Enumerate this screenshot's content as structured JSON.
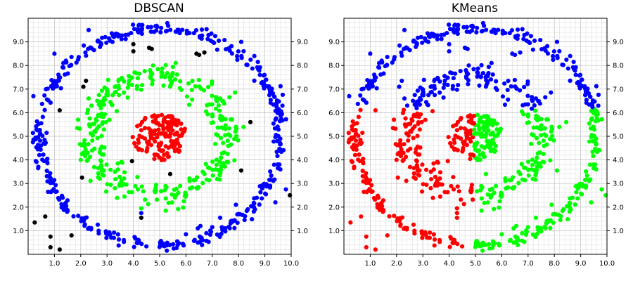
{
  "chart_data": [
    {
      "type": "scatter",
      "title": "DBSCAN",
      "xlim": [
        0,
        10
      ],
      "ylim": [
        0,
        10
      ],
      "x_ticks": [
        "1.0",
        "2.0",
        "3.0",
        "4.0",
        "5.0",
        "6.0",
        "7.0",
        "8.0",
        "9.0",
        "10.0"
      ],
      "y_ticks": [
        "1.0",
        "2.0",
        "3.0",
        "4.0",
        "5.0",
        "6.0",
        "7.0",
        "8.0",
        "9.0"
      ],
      "grid": true,
      "y_tick_labels_both_sides": true,
      "series": [
        {
          "color": "#0000ff",
          "generator": {
            "kind": "ring",
            "cx": 5.0,
            "cy": 5.0,
            "r": 4.6,
            "jitter": 0.13,
            "n": 430,
            "seed": 11
          }
        },
        {
          "color": "#00ff00",
          "generator": {
            "kind": "ring",
            "cx": 5.0,
            "cy": 5.0,
            "r": 2.55,
            "jitter": 0.27,
            "n": 330,
            "seed": 22
          }
        },
        {
          "color": "#ff0000",
          "generator": {
            "kind": "disk",
            "cx": 5.0,
            "cy": 4.95,
            "r": 1.0,
            "n": 140,
            "seed": 33
          }
        },
        {
          "color": "#000000",
          "points": [
            [
              0.25,
              1.35
            ],
            [
              0.65,
              1.6
            ],
            [
              0.85,
              0.75
            ],
            [
              0.85,
              0.3
            ],
            [
              1.2,
              0.2
            ],
            [
              1.65,
              0.8
            ],
            [
              2.05,
              3.25
            ],
            [
              2.1,
              7.1
            ],
            [
              2.2,
              7.35
            ],
            [
              1.2,
              6.1
            ],
            [
              3.95,
              3.95
            ],
            [
              4.0,
              8.9
            ],
            [
              4.3,
              1.55
            ],
            [
              4.6,
              8.75
            ],
            [
              4.7,
              8.7
            ],
            [
              5.4,
              3.4
            ],
            [
              6.4,
              8.5
            ],
            [
              6.5,
              8.45
            ],
            [
              6.7,
              8.55
            ],
            [
              8.1,
              3.55
            ],
            [
              8.45,
              5.6
            ],
            [
              9.95,
              2.5
            ],
            [
              4.0,
              8.6
            ]
          ]
        },
        {
          "color": "#0000ff",
          "points": [
            [
              0.2,
              6.7
            ],
            [
              2.3,
              9.5
            ],
            [
              4.3,
              1.75
            ],
            [
              6.0,
              0.85
            ],
            [
              6.45,
              1.1
            ],
            [
              6.55,
              1.2
            ],
            [
              7.3,
              1.55
            ],
            [
              7.9,
              2.1
            ],
            [
              8.1,
              9.0
            ],
            [
              9.4,
              2.2
            ],
            [
              9.8,
              2.75
            ],
            [
              8.6,
              8.4
            ],
            [
              1.0,
              8.5
            ],
            [
              4.2,
              9.4
            ],
            [
              7.0,
              1.15
            ]
          ]
        },
        {
          "color": "#00ff00",
          "points": [
            [
              4.3,
              1.95
            ],
            [
              3.3,
              2.8
            ],
            [
              1.9,
              5.7
            ],
            [
              2.3,
              6.6
            ],
            [
              7.6,
              3.9
            ],
            [
              7.9,
              5.4
            ],
            [
              2.0,
              4.0
            ],
            [
              7.3,
              6.6
            ]
          ]
        }
      ]
    },
    {
      "type": "scatter",
      "title": "KMeans",
      "xlim": [
        0,
        10
      ],
      "ylim": [
        0,
        10
      ],
      "x_ticks": [
        "1.0",
        "2.0",
        "3.0",
        "4.0",
        "5.0",
        "6.0",
        "7.0",
        "8.0",
        "9.0",
        "10.0"
      ],
      "y_ticks": [
        "1.0",
        "2.0",
        "3.0",
        "4.0",
        "5.0",
        "6.0",
        "7.0",
        "8.0",
        "9.0"
      ],
      "grid": true,
      "y_tick_labels_both_sides": true,
      "partition": {
        "colors": {
          "red": "#ff0000",
          "green": "#00ff00",
          "blue": "#0000ff"
        },
        "rule": "blue if y > 6.15; otherwise red if x < 4.95, else green"
      },
      "series": [
        {
          "generator": {
            "kind": "ring",
            "cx": 5.0,
            "cy": 5.0,
            "r": 4.6,
            "jitter": 0.13,
            "n": 430,
            "seed": 11
          }
        },
        {
          "generator": {
            "kind": "ring",
            "cx": 5.0,
            "cy": 5.0,
            "r": 2.55,
            "jitter": 0.27,
            "n": 330,
            "seed": 22
          }
        },
        {
          "generator": {
            "kind": "disk",
            "cx": 5.0,
            "cy": 4.95,
            "r": 1.0,
            "n": 140,
            "seed": 33
          }
        },
        {
          "points": [
            [
              0.25,
              1.35
            ],
            [
              0.65,
              1.6
            ],
            [
              0.85,
              0.75
            ],
            [
              0.85,
              0.3
            ],
            [
              1.2,
              0.2
            ],
            [
              1.65,
              0.8
            ],
            [
              2.05,
              3.25
            ],
            [
              2.1,
              7.1
            ],
            [
              2.2,
              7.35
            ],
            [
              1.2,
              6.1
            ],
            [
              3.95,
              3.95
            ],
            [
              4.0,
              8.9
            ],
            [
              4.3,
              1.55
            ],
            [
              4.6,
              8.75
            ],
            [
              4.7,
              8.7
            ],
            [
              5.4,
              3.4
            ],
            [
              6.4,
              8.5
            ],
            [
              6.5,
              8.45
            ],
            [
              6.7,
              8.55
            ],
            [
              8.1,
              3.55
            ],
            [
              8.45,
              5.6
            ],
            [
              9.95,
              2.5
            ],
            [
              4.0,
              8.6
            ]
          ]
        },
        {
          "points": [
            [
              0.2,
              6.7
            ],
            [
              2.3,
              9.5
            ],
            [
              4.3,
              1.75
            ],
            [
              6.0,
              0.85
            ],
            [
              6.45,
              1.1
            ],
            [
              6.55,
              1.2
            ],
            [
              7.3,
              1.55
            ],
            [
              7.9,
              2.1
            ],
            [
              8.1,
              9.0
            ],
            [
              9.4,
              2.2
            ],
            [
              9.8,
              2.75
            ],
            [
              8.6,
              8.4
            ],
            [
              1.0,
              8.5
            ],
            [
              4.2,
              9.4
            ],
            [
              7.0,
              1.15
            ]
          ]
        },
        {
          "points": [
            [
              4.3,
              1.95
            ],
            [
              3.3,
              2.8
            ],
            [
              1.9,
              5.7
            ],
            [
              2.3,
              6.6
            ],
            [
              7.6,
              3.9
            ],
            [
              7.9,
              5.4
            ],
            [
              2.0,
              4.0
            ],
            [
              7.3,
              6.6
            ]
          ]
        }
      ]
    }
  ]
}
